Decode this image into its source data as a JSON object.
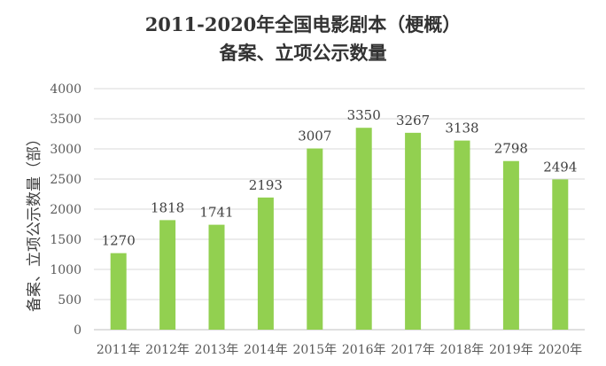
{
  "chart_data": {
    "type": "bar",
    "title": [
      "2011-2020年全国电影剧本（梗概）",
      "备案、立项公示数量"
    ],
    "ylabel": "备案、立项公示数量（部）",
    "xlabel": "",
    "categories": [
      "2011年",
      "2012年",
      "2013年",
      "2014年",
      "2015年",
      "2016年",
      "2017年",
      "2018年",
      "2019年",
      "2020年"
    ],
    "values": [
      1270,
      1818,
      1741,
      2193,
      3007,
      3350,
      3267,
      3138,
      2798,
      2494
    ],
    "ylim": [
      0,
      4000
    ],
    "yticks": [
      0,
      500,
      1000,
      1500,
      2000,
      2500,
      3000,
      3500,
      4000
    ],
    "grid": true,
    "legend": "none",
    "bar_color": "#92D050",
    "grid_color": "#D9D9D9",
    "text_color": "#595959"
  }
}
